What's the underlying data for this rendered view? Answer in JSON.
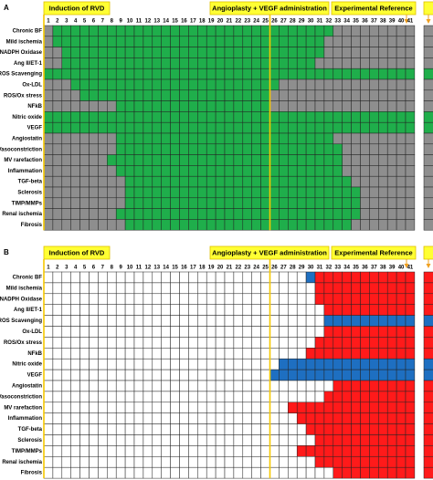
{
  "row_labels": [
    "Chronic BF",
    "Mild ischemia",
    "NADPH Oxidase",
    "Ang II/ET-1",
    "ROS Scavenging",
    "Ox-LDL",
    "ROS/Ox stress",
    "NFkB",
    "Nitric oxide",
    "VEGF",
    "Angiostatin",
    "Vasoconstriction",
    "MV rarefaction",
    "Inflammation",
    "TGF-beta",
    "Sclerosis",
    "TIMP/MMPs",
    "Renal ischemia",
    "Fibrosis"
  ],
  "column_numbers": [
    1,
    2,
    3,
    4,
    5,
    6,
    7,
    8,
    9,
    10,
    11,
    12,
    13,
    14,
    15,
    16,
    17,
    18,
    19,
    20,
    21,
    22,
    23,
    24,
    25,
    26,
    27,
    28,
    29,
    30,
    31,
    32,
    33,
    34,
    35,
    36,
    37,
    38,
    39,
    40,
    41
  ],
  "panels": [
    {
      "label": "A",
      "annotations": [
        "Induction of RVD",
        "Angioplasty + VEGF administration",
        "Experimental Reference"
      ]
    },
    {
      "label": "B",
      "annotations": [
        "Induction of RVD",
        "Angioplasty + VEGF administration",
        "Experimental Reference"
      ]
    }
  ]
}
